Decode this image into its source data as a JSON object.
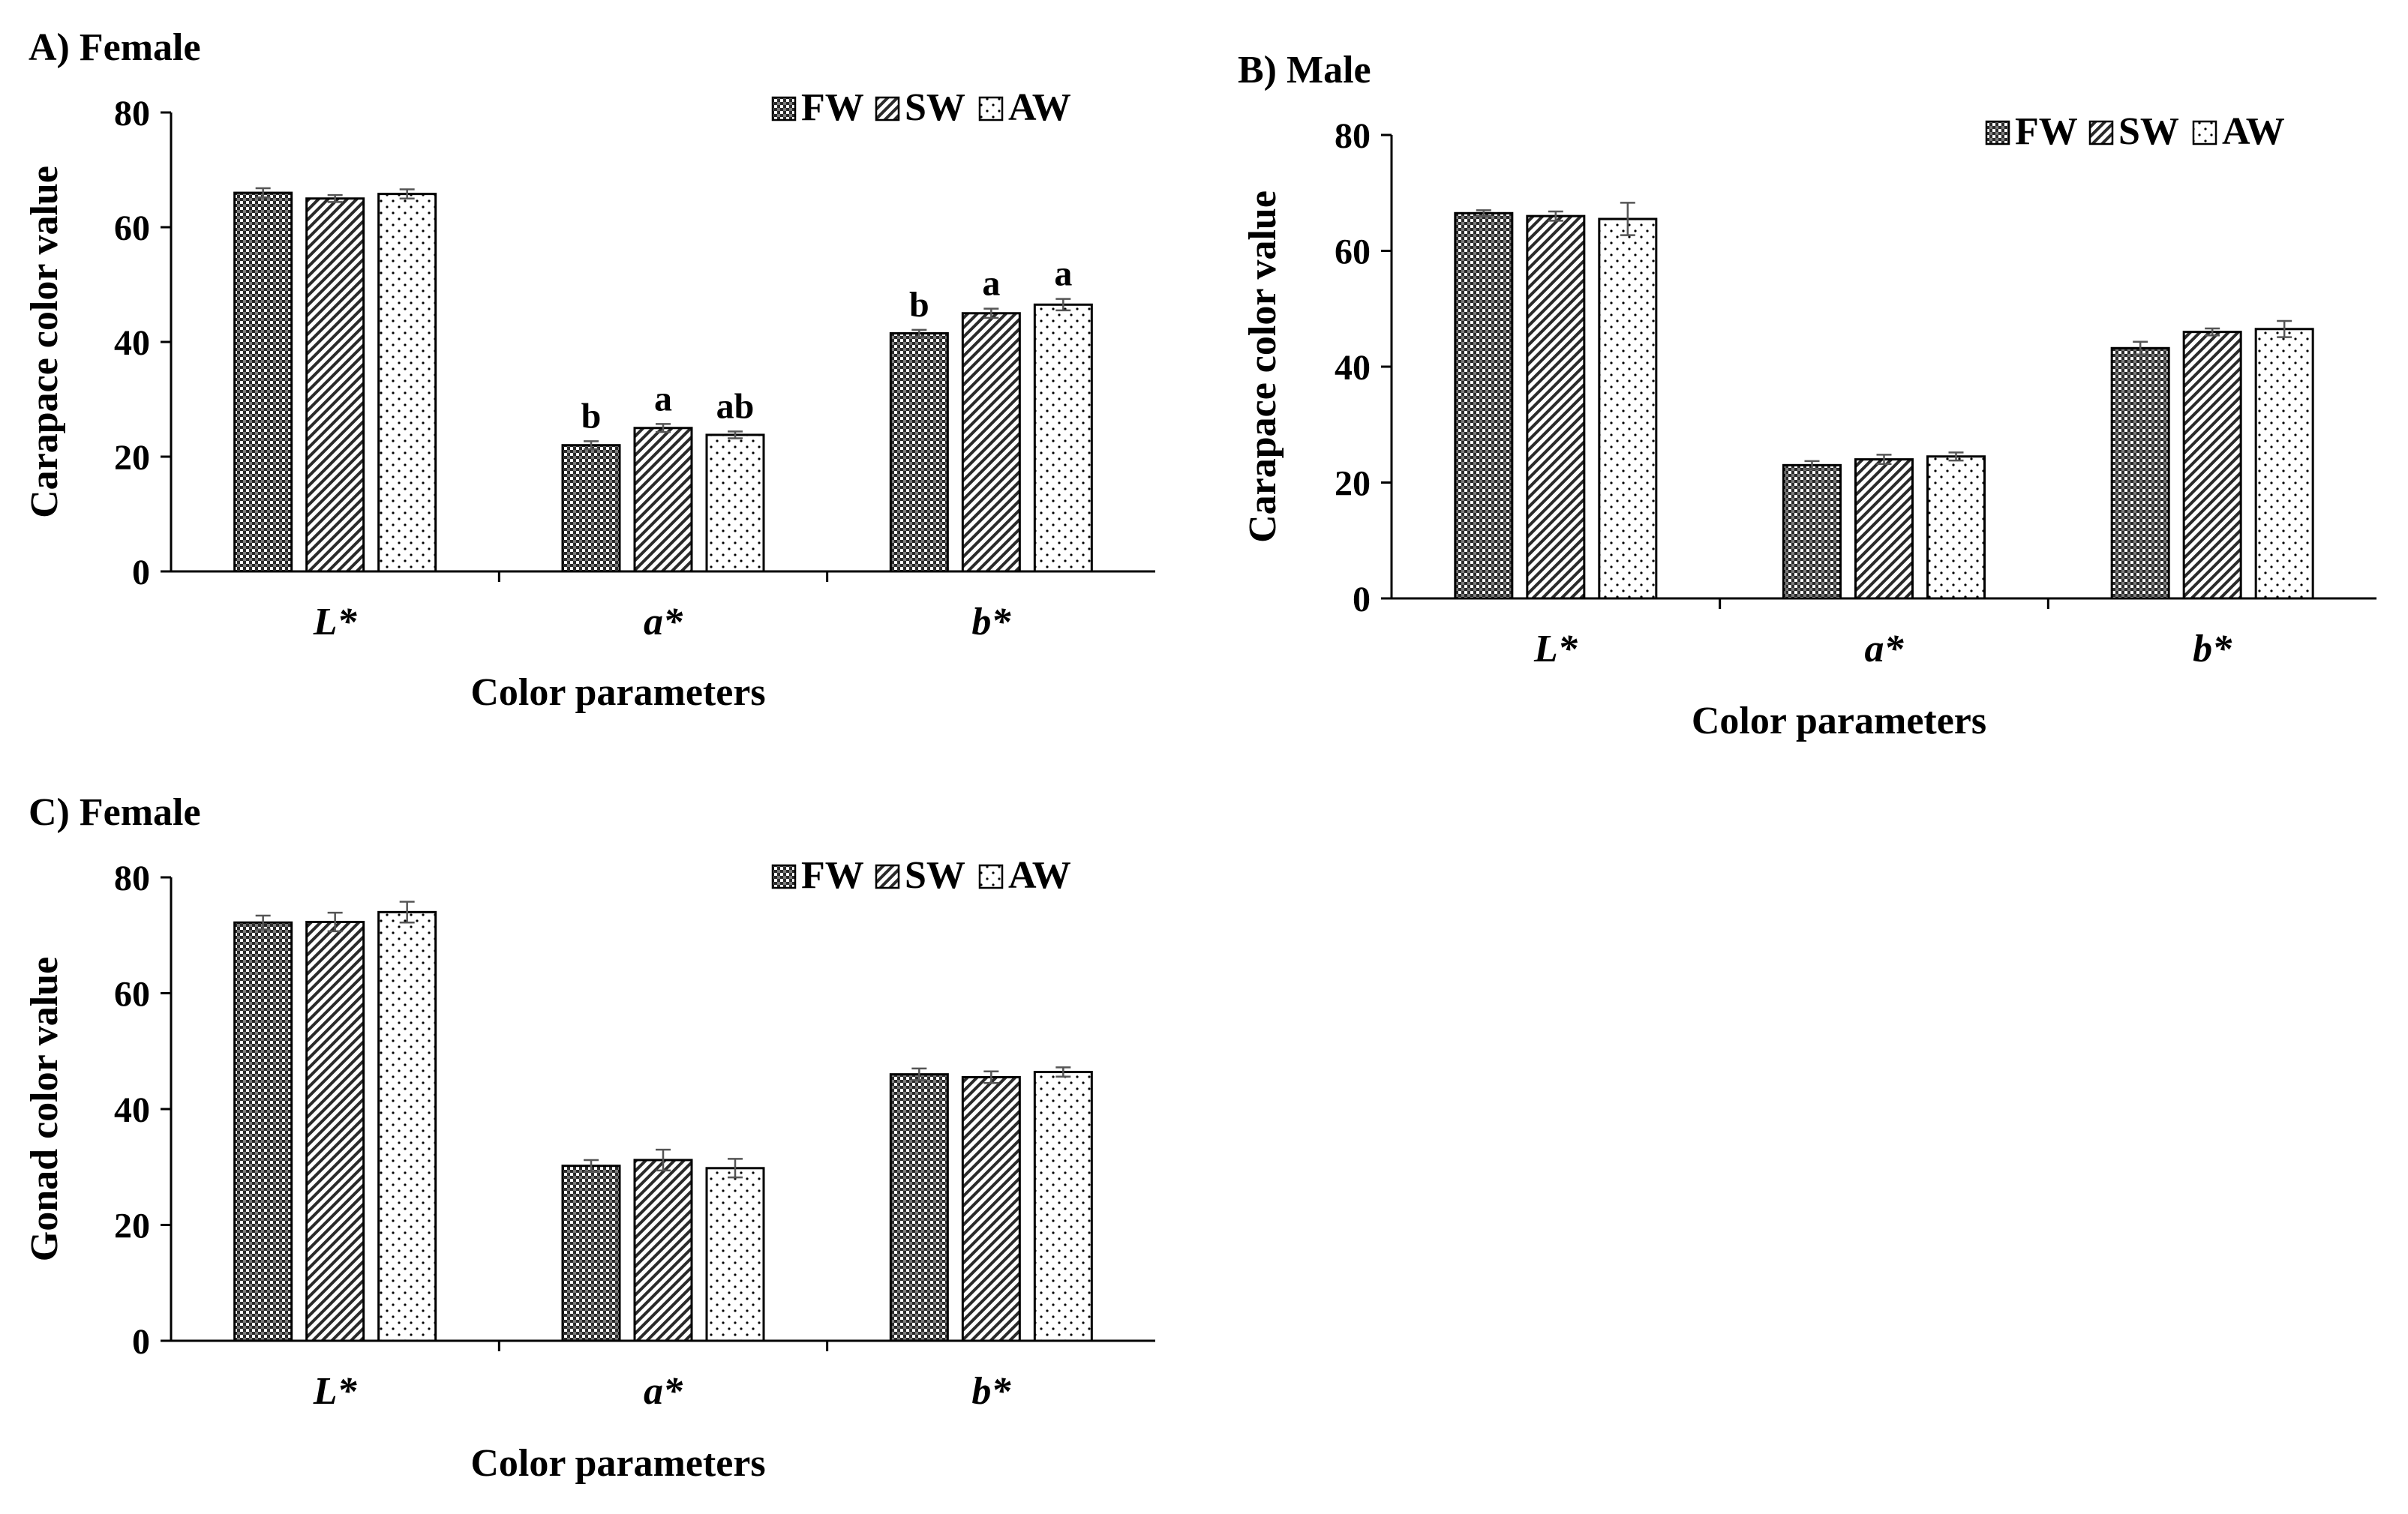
{
  "chart_data": [
    {
      "type": "bar",
      "title": "A)  Female",
      "xlabel": "Color parameters",
      "ylabel": "Carapace color value",
      "ylim": [
        0,
        80
      ],
      "yticks": [
        0,
        20,
        40,
        60,
        80
      ],
      "categories": [
        "L*",
        "a*",
        "b*"
      ],
      "legend": "top-right",
      "grid": false,
      "series": [
        {
          "name": "FW",
          "pattern": "checker",
          "values": [
            66,
            22,
            41.5
          ],
          "errors": [
            0.8,
            0.7,
            0.6
          ],
          "labels": [
            "",
            "b",
            "b"
          ]
        },
        {
          "name": "SW",
          "pattern": "hatch",
          "values": [
            65,
            25,
            45
          ],
          "errors": [
            0.6,
            0.7,
            0.8
          ],
          "labels": [
            "",
            "a",
            "a"
          ]
        },
        {
          "name": "AW",
          "pattern": "dots",
          "values": [
            65.8,
            23.8,
            46.5
          ],
          "errors": [
            0.8,
            0.6,
            1.0
          ],
          "labels": [
            "",
            "ab",
            "a"
          ]
        }
      ]
    },
    {
      "type": "bar",
      "title": "B) Male",
      "xlabel": "Color parameters",
      "ylabel": "Carapace color value",
      "ylim": [
        0,
        80
      ],
      "yticks": [
        0,
        20,
        40,
        60,
        80
      ],
      "categories": [
        "L*",
        "a*",
        "b*"
      ],
      "legend": "top-right",
      "grid": false,
      "series": [
        {
          "name": "FW",
          "pattern": "checker",
          "values": [
            66.5,
            23,
            43.2
          ],
          "errors": [
            0.5,
            0.7,
            1.1
          ],
          "labels": [
            "",
            "",
            ""
          ]
        },
        {
          "name": "SW",
          "pattern": "hatch",
          "values": [
            66,
            24,
            46
          ],
          "errors": [
            0.8,
            0.8,
            0.6
          ],
          "labels": [
            "",
            "",
            ""
          ]
        },
        {
          "name": "AW",
          "pattern": "dots",
          "values": [
            65.5,
            24.5,
            46.5
          ],
          "errors": [
            2.8,
            0.7,
            1.4
          ],
          "labels": [
            "",
            "",
            ""
          ]
        }
      ]
    },
    {
      "type": "bar",
      "title": "C) Female",
      "xlabel": "Color parameters",
      "ylabel": "Gonad color value",
      "ylim": [
        0,
        80
      ],
      "yticks": [
        0,
        20,
        40,
        60,
        80
      ],
      "categories": [
        "L*",
        "a*",
        "b*"
      ],
      "legend": "top-right",
      "grid": false,
      "series": [
        {
          "name": "FW",
          "pattern": "checker",
          "values": [
            72.2,
            30.2,
            46
          ],
          "errors": [
            1.2,
            1.0,
            1.0
          ],
          "labels": [
            "",
            "",
            ""
          ]
        },
        {
          "name": "SW",
          "pattern": "hatch",
          "values": [
            72.3,
            31.2,
            45.5
          ],
          "errors": [
            1.6,
            1.8,
            1.0
          ],
          "labels": [
            "",
            "",
            ""
          ]
        },
        {
          "name": "AW",
          "pattern": "dots",
          "values": [
            74,
            29.8,
            46.4
          ],
          "errors": [
            1.8,
            1.6,
            0.8
          ],
          "labels": [
            "",
            "",
            ""
          ]
        }
      ]
    }
  ]
}
